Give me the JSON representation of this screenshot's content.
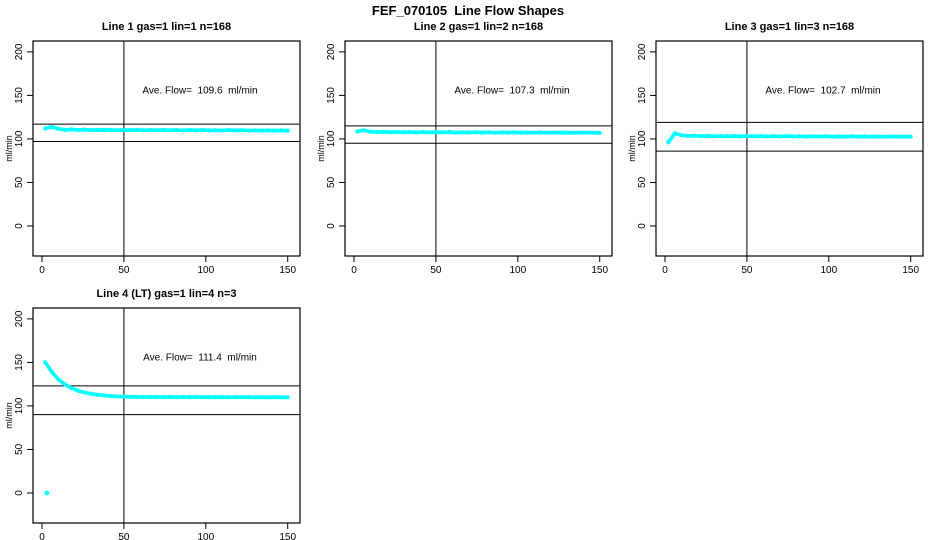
{
  "header": {
    "title": "FEF_070105  Line Flow Shapes"
  },
  "palette": {
    "data_color": "#00ffff",
    "axis_color": "#000000",
    "background_color": "#ffffff",
    "text_color": "#000000"
  },
  "axes": {
    "x_ticks": [
      0,
      50,
      100,
      150
    ],
    "y_ticks": [
      0,
      50,
      100,
      150,
      200
    ],
    "y_unit_label": "ml/min",
    "x_ref_line": 50
  },
  "chart_data": [
    {
      "type": "scatter",
      "title": "Line 1 gas=1 lin=1 n=168",
      "annotation": "Ave. Flow=  109.6  ml/min",
      "ave_flow_ml_min": 109.6,
      "n": 168,
      "ylabel": "ml/min",
      "xlim": [
        0,
        150
      ],
      "ylim": [
        0,
        200
      ],
      "grid": {
        "row": 0,
        "col": 0
      },
      "ref_lines": {
        "vertical_x": 50,
        "upper": 117,
        "lower": 97
      },
      "points": {
        "x_start": 2,
        "x_step": 4,
        "y": [
          112.0,
          113.8,
          111.6,
          110.4,
          110.9,
          110.2,
          110.7,
          110.0,
          110.5,
          110.1,
          110.4,
          109.9,
          110.3,
          110.0,
          110.4,
          109.8,
          110.2,
          110.0,
          110.3,
          109.9,
          110.2,
          109.8,
          110.1,
          109.9,
          110.2,
          109.8,
          110.0,
          109.7,
          110.1,
          109.8,
          110.0,
          109.7,
          109.9,
          109.6,
          109.9,
          109.7,
          109.8,
          109.6
        ]
      },
      "extra_points": []
    },
    {
      "type": "scatter",
      "title": "Line 2 gas=1 lin=2 n=168",
      "annotation": "Ave. Flow=  107.3  ml/min",
      "ave_flow_ml_min": 107.3,
      "n": 168,
      "ylabel": "ml/min",
      "xlim": [
        0,
        150
      ],
      "ylim": [
        0,
        200
      ],
      "grid": {
        "row": 0,
        "col": 1
      },
      "ref_lines": {
        "vertical_x": 50,
        "upper": 115,
        "lower": 95
      },
      "points": {
        "x_start": 2,
        "x_step": 4,
        "y": [
          108.5,
          110.0,
          108.3,
          107.9,
          108.1,
          107.7,
          108.0,
          107.6,
          107.9,
          107.5,
          107.8,
          107.4,
          107.7,
          107.5,
          107.8,
          107.3,
          107.6,
          107.4,
          107.7,
          107.3,
          107.6,
          107.2,
          107.5,
          107.3,
          107.6,
          107.2,
          107.4,
          107.1,
          107.5,
          107.2,
          107.4,
          107.1,
          107.3,
          107.0,
          107.3,
          107.1,
          107.2,
          107.0
        ]
      },
      "extra_points": []
    },
    {
      "type": "scatter",
      "title": "Line 3 gas=1 lin=3 n=168",
      "annotation": "Ave. Flow=  102.7  ml/min",
      "ave_flow_ml_min": 102.7,
      "n": 168,
      "ylabel": "ml/min",
      "xlim": [
        0,
        150
      ],
      "ylim": [
        0,
        200
      ],
      "grid": {
        "row": 0,
        "col": 2
      },
      "ref_lines": {
        "vertical_x": 50,
        "upper": 119,
        "lower": 86
      },
      "points": {
        "x_start": 2,
        "x_step": 4,
        "y": [
          96.0,
          106.5,
          104.3,
          103.4,
          103.7,
          103.1,
          103.5,
          103.0,
          103.4,
          103.0,
          103.3,
          102.9,
          103.2,
          103.0,
          103.3,
          102.8,
          103.1,
          102.9,
          103.2,
          102.8,
          103.1,
          102.7,
          103.0,
          102.8,
          103.1,
          102.7,
          102.9,
          102.6,
          103.0,
          102.7,
          102.9,
          102.6,
          102.8,
          102.5,
          102.8,
          102.6,
          102.7,
          102.5
        ]
      },
      "extra_points": []
    },
    {
      "type": "scatter",
      "title": "Line 4 (LT) gas=1 lin=4 n=3",
      "annotation": "Ave. Flow=  111.4  ml/min",
      "ave_flow_ml_min": 111.4,
      "n": 3,
      "ylabel": "ml/min",
      "xlim": [
        0,
        150
      ],
      "ylim": [
        0,
        200
      ],
      "grid": {
        "row": 1,
        "col": 0
      },
      "ref_lines": {
        "vertical_x": 50,
        "upper": 123,
        "lower": 90
      },
      "points": {
        "x_start": 2,
        "x_step": 4,
        "y": [
          150.0,
          139.0,
          130.5,
          124.7,
          120.5,
          117.5,
          115.4,
          113.9,
          112.8,
          112.0,
          111.4,
          111.0,
          110.7,
          110.5,
          110.4,
          110.3,
          110.2,
          110.3,
          110.1,
          110.2,
          110.0,
          110.2,
          110.1,
          110.2,
          110.0,
          110.1,
          110.0,
          110.1,
          109.9,
          110.1,
          110.0,
          110.0,
          109.9,
          110.0,
          109.9,
          110.0,
          109.9,
          109.9
        ]
      },
      "extra_points": [
        [
          3,
          0
        ]
      ]
    }
  ]
}
